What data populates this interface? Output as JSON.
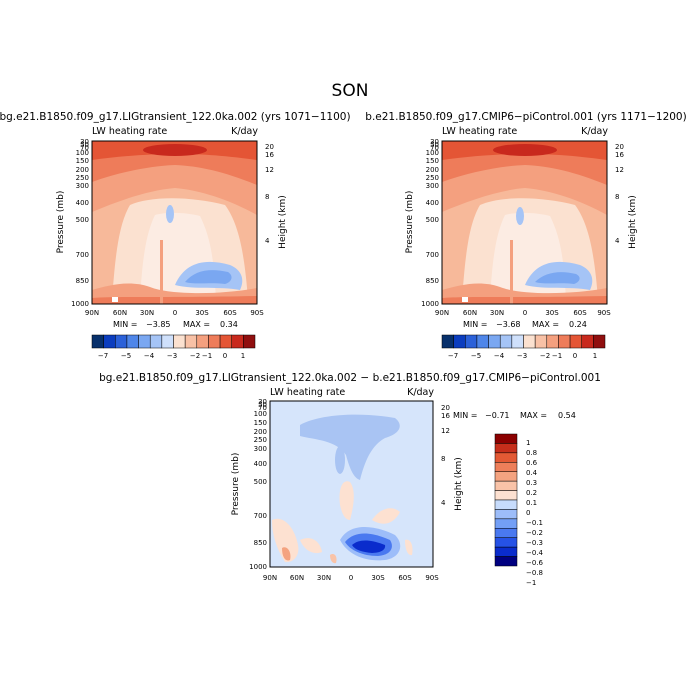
{
  "page": {
    "season": "SON",
    "diff_title": "bg.e21.B1850.f09_g17.LIGtransient_122.0ka.002 − b.e21.B1850.f09_g17.CMIP6−piControl.001"
  },
  "colors": {
    "main_scale": [
      "#08306b",
      "#0b3dbf",
      "#2b61d9",
      "#4f86e9",
      "#7aa7f1",
      "#a5c4f6",
      "#cfe0fb",
      "#fbe1d0",
      "#f8c1a6",
      "#f4a07f",
      "#ee7c5a",
      "#e45535",
      "#c8291d",
      "#900f0f"
    ],
    "diff_scale": [
      "#000080",
      "#0a2ccc",
      "#2652e6",
      "#4a79f0",
      "#739ff6",
      "#9dbdf9",
      "#c7dcfc",
      "#fde1d1",
      "#f9c3a8",
      "#f4a380",
      "#ee7f5a",
      "#e35934",
      "#c62e1b",
      "#8b0000"
    ]
  },
  "chart_data": [
    {
      "type": "heatmap",
      "title": "bg.e21.B1850.f09_g17.LIGtransient_122.0ka.002 (yrs 1071−1100)",
      "variable": "LW heating rate",
      "units": "K/day",
      "xlabel": "",
      "ylabel": "Pressure (mb)",
      "right_label": "Height (km)",
      "x_ticks": [
        "90N",
        "60N",
        "30N",
        "0",
        "30S",
        "60S",
        "90S"
      ],
      "y_ticks": [
        "30",
        "50",
        "70",
        "100",
        "150",
        "200",
        "250",
        "300",
        "400",
        "500",
        "700",
        "850",
        "1000"
      ],
      "height_ticks": [
        "20",
        "16",
        "12",
        "8",
        "4"
      ],
      "stats": {
        "min_label": "MIN =",
        "min": "−3.85",
        "max_label": "MAX =",
        "max": "0.34"
      },
      "colorbar": [
        "−7",
        "−5",
        "−4",
        "−3",
        "−2",
        "−1",
        "0",
        "1"
      ]
    },
    {
      "type": "heatmap",
      "title": "b.e21.B1850.f09_g17.CMIP6−piControl.001 (yrs 1171−1200)",
      "variable": "LW heating rate",
      "units": "K/day",
      "xlabel": "",
      "ylabel": "Pressure (mb)",
      "right_label": "Height (km)",
      "x_ticks": [
        "90N",
        "60N",
        "30N",
        "0",
        "30S",
        "60S",
        "90S"
      ],
      "y_ticks": [
        "30",
        "50",
        "70",
        "100",
        "150",
        "200",
        "250",
        "300",
        "400",
        "500",
        "700",
        "850",
        "1000"
      ],
      "height_ticks": [
        "20",
        "16",
        "12",
        "8",
        "4"
      ],
      "stats": {
        "min_label": "MIN =",
        "min": "−3.68",
        "max_label": "MAX =",
        "max": "0.24"
      },
      "colorbar": [
        "−7",
        "−5",
        "−4",
        "−3",
        "−2",
        "−1",
        "0",
        "1"
      ]
    },
    {
      "type": "heatmap",
      "title": "",
      "variable": "LW heating rate",
      "units": "K/day",
      "xlabel": "",
      "ylabel": "Pressure (mb)",
      "right_label": "Height (km)",
      "x_ticks": [
        "90N",
        "60N",
        "30N",
        "0",
        "30S",
        "60S",
        "90S"
      ],
      "y_ticks": [
        "30",
        "50",
        "70",
        "100",
        "150",
        "200",
        "250",
        "300",
        "400",
        "500",
        "700",
        "850",
        "1000"
      ],
      "height_ticks": [
        "20",
        "16",
        "12",
        "8",
        "4"
      ],
      "stats": {
        "min_label": "MIN =",
        "min": "−0.71",
        "max_label": "MAX =",
        "max": "0.54"
      },
      "colorbar": [
        "1",
        "0.8",
        "0.6",
        "0.4",
        "0.3",
        "0.2",
        "0.1",
        "0",
        "−0.1",
        "−0.2",
        "−0.3",
        "−0.4",
        "−0.6",
        "−0.8",
        "−1"
      ]
    }
  ]
}
